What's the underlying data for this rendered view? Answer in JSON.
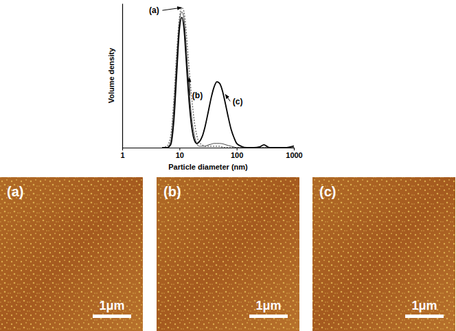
{
  "chart_data": {
    "type": "line",
    "x_label": "Particle diameter (nm)",
    "y_label": "Volume density",
    "log": "x",
    "grid": false,
    "tick_labels": "x",
    "xlim": [
      1,
      1000
    ],
    "xticks": [
      1,
      10,
      100,
      1000
    ],
    "ylim": [
      0,
      1.03
    ],
    "yticks": [],
    "x": [
      5,
      6,
      7,
      8,
      9,
      10,
      11,
      12,
      13,
      14,
      16,
      18,
      20,
      22,
      25,
      28,
      32,
      36,
      40,
      45,
      50,
      56,
      63,
      71,
      80,
      90,
      100,
      120,
      150,
      200,
      250,
      300,
      350,
      400,
      500,
      700,
      1000
    ],
    "series": [
      {
        "name": "(a)",
        "color": "#666666",
        "line_style": "dotted",
        "values": [
          0,
          0.01,
          0.08,
          0.35,
          0.7,
          0.93,
          1.0,
          0.97,
          0.85,
          0.68,
          0.4,
          0.2,
          0.09,
          0.04,
          0.02,
          0.01,
          0.01,
          0.01,
          0.01,
          0.01,
          0.01,
          0.005,
          0,
          0,
          0,
          0,
          0,
          0,
          0,
          0,
          0,
          0,
          0,
          0,
          0,
          0,
          0
        ]
      },
      {
        "name": "(b)",
        "color": "#444444",
        "line_style": "solid",
        "values": [
          0,
          0,
          0.04,
          0.3,
          0.65,
          0.9,
          0.97,
          0.92,
          0.75,
          0.55,
          0.25,
          0.1,
          0.03,
          0.01,
          0.01,
          0.01,
          0.02,
          0.025,
          0.03,
          0.03,
          0.03,
          0.028,
          0.022,
          0.015,
          0.01,
          0.005,
          0,
          0,
          0,
          0,
          0,
          0,
          0,
          0,
          0,
          0,
          0
        ]
      },
      {
        "name": "(c)",
        "color": "#000000",
        "line_style": "solid",
        "values": [
          0,
          0,
          0.02,
          0.2,
          0.55,
          0.85,
          0.93,
          0.85,
          0.65,
          0.45,
          0.18,
          0.06,
          0.03,
          0.04,
          0.08,
          0.15,
          0.26,
          0.36,
          0.43,
          0.47,
          0.46,
          0.41,
          0.32,
          0.22,
          0.13,
          0.07,
          0.03,
          0.01,
          0,
          0,
          0.005,
          0.02,
          0.005,
          0,
          0,
          0,
          0.012
        ]
      }
    ],
    "annotations": [
      {
        "text": "(a)",
        "x": 11.5,
        "y": 1.0
      },
      {
        "text": "(b)",
        "x": 14,
        "y": 0.5
      },
      {
        "text": "(c)",
        "x": 60,
        "y": 0.38
      }
    ]
  },
  "panels": [
    {
      "label": "(a)",
      "scale_bar": "1μm"
    },
    {
      "label": "(b)",
      "scale_bar": "1μm"
    },
    {
      "label": "(c)",
      "scale_bar": "1μm"
    }
  ]
}
